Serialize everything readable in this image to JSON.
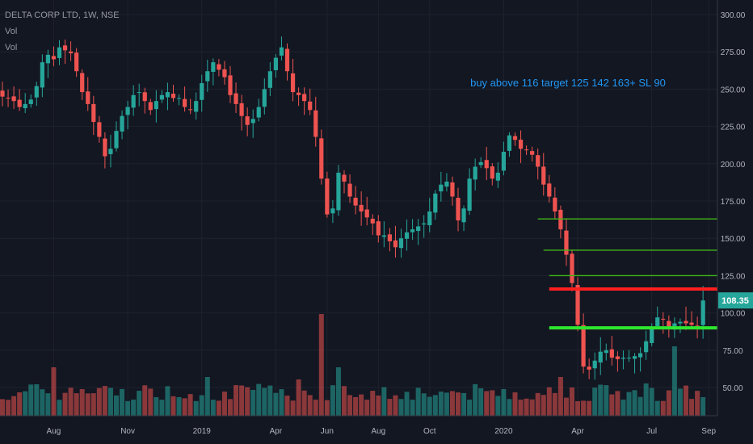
{
  "legend": {
    "symbol_line": "DELTA CORP LTD, 1W, NSE",
    "vol_label_1": "Vol",
    "vol_label_2": "Vol"
  },
  "chart_data": {
    "type": "candlestick",
    "symbol": "DELTA CORP LTD",
    "interval": "1W",
    "exchange": "NSE",
    "annotation": "buy above 116 target 125 142 163+ SL 90",
    "last_price": "108.35",
    "y_ticks": [
      "300.00",
      "275.00",
      "250.00",
      "225.00",
      "200.00",
      "175.00",
      "150.00",
      "125.00",
      "100.00",
      "75.00",
      "50.00"
    ],
    "y_tick_values": [
      300,
      275,
      250,
      225,
      200,
      175,
      150,
      125,
      100,
      75,
      50
    ],
    "ylim": [
      35,
      310
    ],
    "x_ticks": [
      "Aug",
      "Nov",
      "2019",
      "Apr",
      "Jun",
      "Aug",
      "Oct",
      "2020",
      "Apr",
      "Jul",
      "Sep"
    ],
    "x_tick_weeks": [
      9,
      22,
      35,
      48,
      57,
      66,
      75,
      88,
      101,
      114,
      124
    ],
    "num_weeks": 130,
    "closes": [
      245,
      244,
      242,
      238,
      240,
      243,
      252,
      268,
      273,
      270,
      278,
      276,
      274,
      262,
      248,
      240,
      228,
      218,
      205,
      210,
      222,
      232,
      238,
      246,
      248,
      242,
      236,
      242,
      246,
      248,
      244,
      244,
      238,
      236,
      242,
      254,
      262,
      268,
      263,
      258,
      246,
      240,
      232,
      226,
      230,
      238,
      250,
      262,
      271,
      278,
      262,
      248,
      246,
      242,
      236,
      218,
      190,
      166,
      170,
      194,
      188,
      178,
      172,
      168,
      164,
      160,
      152,
      152,
      148,
      144,
      150,
      154,
      156,
      158,
      160,
      168,
      180,
      186,
      188,
      178,
      162,
      170,
      190,
      198,
      201,
      197,
      190,
      194,
      208,
      219,
      216,
      210,
      209,
      206,
      198,
      186,
      178,
      168,
      156,
      139,
      120,
      92,
      64,
      62,
      68,
      74,
      75,
      70,
      69,
      70,
      70,
      71,
      73,
      81,
      90,
      97,
      96,
      90,
      93,
      94,
      93,
      92,
      91,
      108.35
    ],
    "colors": {
      "up": "#26a69a",
      "down": "#ef5350",
      "target_lines": "#3fb618",
      "buy_line": "#ff1f1f",
      "sl_line": "#2ee62e",
      "annotation": "#2196f3",
      "last_price_badge": "#26a69a",
      "axis_text": "#b2b5be"
    },
    "levels": {
      "buy": 116,
      "targets": [
        125,
        142,
        163
      ],
      "stop_loss": 90
    }
  }
}
